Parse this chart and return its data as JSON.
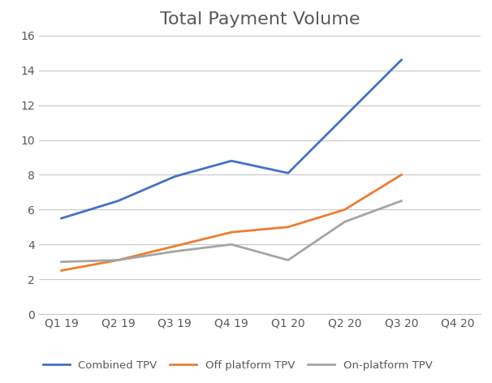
{
  "title": "Total Payment Volume",
  "categories": [
    "Q1 19",
    "Q2 19",
    "Q3 19",
    "Q4 19",
    "Q1 20",
    "Q2 20",
    "Q3 20",
    "Q4 20"
  ],
  "series": [
    {
      "name": "Combined TPV",
      "color": "#4472C4",
      "values": [
        5.5,
        6.5,
        7.9,
        8.8,
        8.1,
        null,
        14.6,
        null
      ]
    },
    {
      "name": "Off platform TPV",
      "color": "#ED7D31",
      "values": [
        2.5,
        3.1,
        3.9,
        4.7,
        5.0,
        6.0,
        8.0,
        null
      ]
    },
    {
      "name": "On-platform TPV",
      "color": "#A5A5A5",
      "values": [
        3.0,
        3.1,
        3.6,
        4.0,
        3.1,
        5.3,
        6.5,
        null
      ]
    }
  ],
  "ylim": [
    0,
    16
  ],
  "yticks": [
    0,
    2,
    4,
    6,
    8,
    10,
    12,
    14,
    16
  ],
  "background_color": "#FFFFFF",
  "plot_background_color": "#FFFFFF",
  "grid_color": "#C8C8C8",
  "title_color": "#595959",
  "tick_color": "#595959",
  "title_fontsize": 16,
  "legend_fontsize": 9.5,
  "tick_fontsize": 10,
  "line_width": 2.0
}
